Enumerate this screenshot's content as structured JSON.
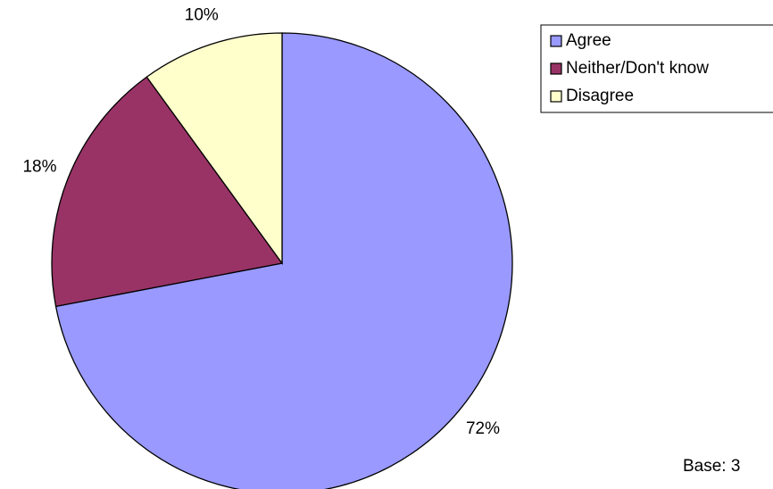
{
  "chart_data": {
    "type": "pie",
    "categories": [
      "Agree",
      "Neither/Don't know",
      "Disagree"
    ],
    "values": [
      72,
      18,
      10
    ],
    "value_labels": [
      "72%",
      "18%",
      "10%"
    ],
    "colors": [
      "#9999ff",
      "#993366",
      "#ffffcc"
    ],
    "legend": "top-right",
    "note": "Base: 3"
  }
}
